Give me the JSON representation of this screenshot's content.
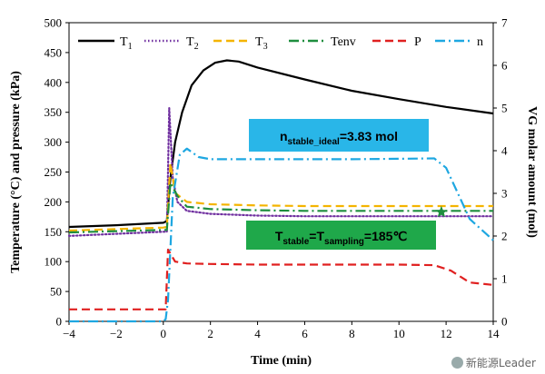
{
  "chart_data": {
    "type": "line",
    "xlabel": "Time (min)",
    "ylabel_left": "Temperature (°C) and  pressure (kPa)",
    "ylabel_right": "VG molar amount (mol)",
    "xlim": [
      -4,
      14
    ],
    "ylim_left": [
      0,
      500
    ],
    "ylim_right": [
      0,
      7
    ],
    "x_ticks": [
      "−4",
      "−2",
      "0",
      "2",
      "4",
      "6",
      "8",
      "10",
      "12",
      "14"
    ],
    "y_ticks_left": [
      "0",
      "50",
      "100",
      "150",
      "200",
      "250",
      "300",
      "350",
      "400",
      "450",
      "500"
    ],
    "y_ticks_right": [
      "0",
      "1",
      "2",
      "3",
      "4",
      "5",
      "6",
      "7"
    ],
    "legend_position": "top",
    "series": [
      {
        "name": "T",
        "sub": "1",
        "color": "#000000",
        "axis": "left",
        "style": "solid",
        "x": [
          -4,
          -2,
          0,
          0.15,
          0.3,
          0.5,
          0.8,
          1.2,
          1.7,
          2.2,
          2.7,
          3.2,
          4,
          6,
          8,
          10,
          12,
          14
        ],
        "y": [
          158,
          161,
          165,
          168,
          240,
          300,
          350,
          395,
          420,
          433,
          437,
          435,
          425,
          405,
          386,
          372,
          359,
          348
        ]
      },
      {
        "name": "T",
        "sub": "2",
        "color": "#7030A0",
        "axis": "left",
        "style": "dot",
        "x": [
          -4,
          0,
          0.15,
          0.25,
          0.4,
          0.6,
          1,
          2,
          4,
          6,
          8,
          10,
          12,
          14
        ],
        "y": [
          143,
          150,
          150,
          357,
          240,
          200,
          185,
          180,
          177,
          176,
          176,
          176,
          176,
          176
        ]
      },
      {
        "name": "T",
        "sub": "3",
        "color": "#F4B400",
        "axis": "left",
        "style": "dash",
        "x": [
          -4,
          0,
          0.15,
          0.3,
          0.5,
          1,
          2,
          4,
          6,
          8,
          10,
          12,
          14
        ],
        "y": [
          152,
          157,
          158,
          265,
          215,
          200,
          196,
          194,
          193,
          193,
          193,
          193,
          193
        ]
      },
      {
        "name": "Tenv",
        "sub": "",
        "color": "#1E8E3E",
        "axis": "left",
        "style": "dashdot",
        "x": [
          -4,
          0,
          0.15,
          0.3,
          0.6,
          1,
          2,
          4,
          6,
          8,
          10,
          12,
          14
        ],
        "y": [
          149,
          153,
          153,
          232,
          210,
          192,
          188,
          186,
          185,
          185,
          185,
          185,
          185
        ]
      },
      {
        "name": "P",
        "sub": "",
        "color": "#E02020",
        "axis": "left",
        "style": "dash",
        "x": [
          -4,
          0,
          0.1,
          0.2,
          0.5,
          1,
          2,
          4,
          6,
          8,
          10,
          11.5,
          12.2,
          13,
          14
        ],
        "y": [
          20,
          20,
          20,
          120,
          100,
          97,
          96,
          95,
          95,
          95,
          95,
          94,
          85,
          65,
          61
        ]
      },
      {
        "name": "n",
        "sub": "",
        "color": "#1EA7E1",
        "axis": "right",
        "style": "dashdot",
        "x": [
          -4,
          0,
          0.1,
          0.2,
          0.4,
          0.7,
          1,
          1.5,
          2,
          4,
          6,
          8,
          10,
          11.5,
          12,
          12.5,
          13,
          14
        ],
        "y": [
          0,
          0,
          0.05,
          0.5,
          2.9,
          3.9,
          4.05,
          3.85,
          3.8,
          3.8,
          3.8,
          3.8,
          3.81,
          3.82,
          3.6,
          3.0,
          2.4,
          1.9
        ]
      }
    ],
    "annotations": [
      {
        "id": "n-stable",
        "main": "n",
        "sub": "stable_ideal",
        "tail": "=3.83 mol",
        "bg": "#29B6E8"
      },
      {
        "id": "t-stable",
        "main": "T",
        "sub1": "stable",
        "mid": "=T",
        "sub2": "sampling",
        "tail": "=185℃",
        "bg": "#1FA84A"
      }
    ],
    "marker": {
      "x": 11.8,
      "y": 183,
      "color": "#1E8E3E",
      "shape": "star"
    }
  },
  "watermark": {
    "text": "新能源Leader"
  }
}
